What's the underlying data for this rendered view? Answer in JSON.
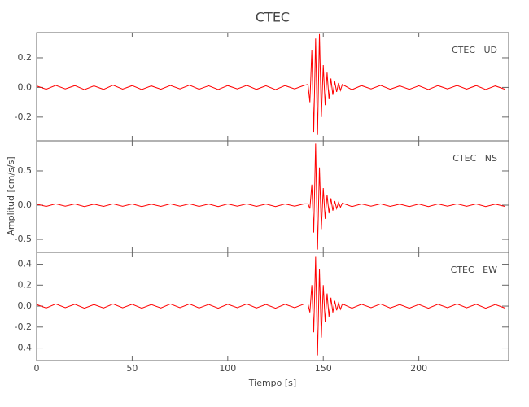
{
  "chart_data": {
    "type": "line",
    "title": "CTEC",
    "xlabel": "Tiempo [s]",
    "ylabel": "Amplitud [cm/s/s]",
    "color": "#ff0000",
    "xlim": [
      0,
      247
    ],
    "xticks": [
      0,
      50,
      100,
      150,
      200
    ],
    "x": [
      0,
      5,
      10,
      15,
      20,
      25,
      30,
      35,
      40,
      45,
      50,
      55,
      60,
      65,
      70,
      75,
      80,
      85,
      90,
      95,
      100,
      105,
      110,
      115,
      120,
      125,
      130,
      135,
      140,
      142,
      143,
      144,
      145,
      146,
      147,
      148,
      149,
      150,
      151,
      152,
      153,
      154,
      155,
      156,
      157,
      158,
      159,
      160,
      165,
      170,
      175,
      180,
      185,
      190,
      195,
      200,
      205,
      210,
      215,
      220,
      225,
      230,
      235,
      240,
      245
    ],
    "panels": [
      {
        "label": "CTEC   UD",
        "ylim": [
          -0.36,
          0.37
        ],
        "yticks": [
          -0.2,
          {
            "value": 0,
            "label": "0.0"
          },
          0.2
        ],
        "values": [
          0.01,
          -0.012,
          0.014,
          -0.01,
          0.012,
          -0.015,
          0.01,
          -0.013,
          0.015,
          -0.011,
          0.012,
          -0.014,
          0.01,
          -0.012,
          0.013,
          -0.01,
          0.015,
          -0.012,
          0.011,
          -0.014,
          0.012,
          -0.01,
          0.014,
          -0.013,
          0.011,
          -0.015,
          0.012,
          -0.01,
          0.014,
          0.02,
          -0.1,
          0.25,
          -0.3,
          0.33,
          -0.32,
          0.36,
          -0.2,
          0.15,
          -0.12,
          0.1,
          -0.08,
          0.06,
          -0.05,
          0.04,
          -0.03,
          0.03,
          -0.02,
          0.02,
          -0.015,
          0.012,
          -0.01,
          0.014,
          -0.012,
          0.01,
          -0.013,
          0.011,
          -0.014,
          0.012,
          -0.01,
          0.013,
          -0.011,
          0.012,
          -0.014,
          0.01,
          -0.012
        ]
      },
      {
        "label": "CTEC   NS",
        "ylim": [
          -0.69,
          0.94
        ],
        "yticks": [
          -0.5,
          {
            "value": 0,
            "label": "0.0"
          },
          0.5
        ],
        "values": [
          0.015,
          -0.018,
          0.02,
          -0.015,
          0.018,
          -0.02,
          0.015,
          -0.018,
          0.02,
          -0.016,
          0.018,
          -0.02,
          0.015,
          -0.018,
          0.02,
          -0.015,
          0.02,
          -0.018,
          0.016,
          -0.02,
          0.018,
          -0.015,
          0.02,
          -0.018,
          0.016,
          -0.02,
          0.018,
          -0.015,
          0.02,
          0.02,
          -0.05,
          0.3,
          -0.4,
          0.9,
          -0.65,
          0.55,
          -0.35,
          0.25,
          -0.2,
          0.15,
          -0.12,
          0.1,
          -0.08,
          0.06,
          -0.05,
          0.04,
          -0.03,
          0.03,
          -0.02,
          0.018,
          -0.015,
          0.02,
          -0.018,
          0.015,
          -0.02,
          0.016,
          -0.02,
          0.018,
          -0.015,
          0.02,
          -0.016,
          0.018,
          -0.02,
          0.015,
          -0.018
        ]
      },
      {
        "label": "CTEC   EW",
        "ylim": [
          -0.52,
          0.513
        ],
        "yticks": [
          -0.4,
          -0.2,
          {
            "value": 0,
            "label": "0.0"
          },
          0.2,
          0.4
        ],
        "values": [
          0.015,
          -0.018,
          0.02,
          -0.015,
          0.018,
          -0.02,
          0.015,
          -0.018,
          0.02,
          -0.016,
          0.018,
          -0.02,
          0.015,
          -0.018,
          0.02,
          -0.015,
          0.02,
          -0.018,
          0.016,
          -0.02,
          0.018,
          -0.015,
          0.02,
          -0.018,
          0.016,
          -0.02,
          0.018,
          -0.015,
          0.02,
          0.02,
          -0.06,
          0.2,
          -0.25,
          0.47,
          -0.47,
          0.35,
          -0.3,
          0.2,
          -0.15,
          0.12,
          -0.1,
          0.08,
          -0.06,
          0.05,
          -0.04,
          0.03,
          -0.03,
          0.02,
          -0.02,
          0.018,
          -0.015,
          0.02,
          -0.018,
          0.015,
          -0.02,
          0.016,
          -0.02,
          0.018,
          -0.015,
          0.02,
          -0.016,
          0.018,
          -0.02,
          0.015,
          -0.018
        ]
      }
    ]
  }
}
